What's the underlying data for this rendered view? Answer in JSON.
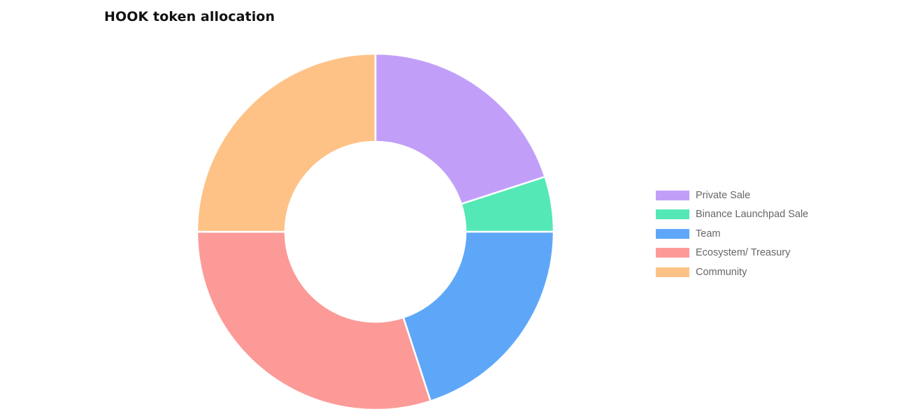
{
  "chart_data": {
    "type": "pie",
    "title": "HOOK token allocation",
    "categories": [
      "Private Sale",
      "Binance Launchpad Sale",
      "Team",
      "Ecosystem/ Treasury",
      "Community"
    ],
    "values": [
      20,
      5,
      20,
      30,
      25
    ],
    "colors": [
      "#c19ff9",
      "#53e8b6",
      "#5ea7f8",
      "#fc9a98",
      "#fec286"
    ],
    "legend_position": "right"
  }
}
